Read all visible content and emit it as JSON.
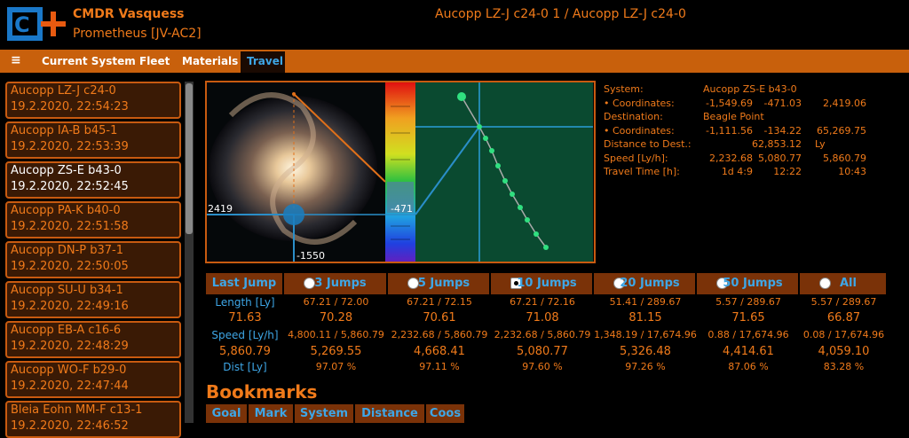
{
  "header": {
    "commander": "CMDR Vasquess",
    "ship": "Prometheus [JV-AC2]",
    "title": "Aucopp LZ-J c24-0 1 / Aucopp LZ-J c24-0"
  },
  "nav": {
    "menu": "≡",
    "tabs": [
      "Current System",
      "Fleet",
      "Materials",
      "Travel"
    ],
    "active": 3
  },
  "history": {
    "selected": 2,
    "items": [
      {
        "system": "Aucopp LZ-J c24-0",
        "time": "19.2.2020, 22:54:23"
      },
      {
        "system": "Aucopp IA-B b45-1",
        "time": "19.2.2020, 22:53:39"
      },
      {
        "system": "Aucopp ZS-E b43-0",
        "time": "19.2.2020, 22:52:45"
      },
      {
        "system": "Aucopp PA-K b40-0",
        "time": "19.2.2020, 22:51:58"
      },
      {
        "system": "Aucopp DN-P b37-1",
        "time": "19.2.2020, 22:50:05"
      },
      {
        "system": "Aucopp SU-U b34-1",
        "time": "19.2.2020, 22:49:16"
      },
      {
        "system": "Aucopp EB-A c16-6",
        "time": "19.2.2020, 22:48:29"
      },
      {
        "system": "Aucopp WO-F b29-0",
        "time": "19.2.2020, 22:47:44"
      },
      {
        "system": "Bleia Eohn MM-F c13-1",
        "time": "19.2.2020, 22:46:52"
      }
    ]
  },
  "map": {
    "x_label": "2419",
    "z_label": "-471",
    "y_label": "-1550"
  },
  "info": [
    [
      "System:",
      "Aucopp ZS-E b43-0"
    ],
    [
      "• Coordinates:",
      "-1,549.69",
      "-471.03",
      "2,419.06"
    ],
    [
      "Destination:",
      "Beagle Point"
    ],
    [
      "• Coordinates:",
      "-1,111.56",
      "-134.22",
      "65,269.75"
    ],
    [
      "Distance to Dest.:",
      "62,853.12",
      "Ly"
    ],
    [
      "Speed [Ly/h]:",
      "2,232.68",
      "5,080.77",
      "5,860.79"
    ],
    [
      "Travel Time [h]:",
      "1d 4:9",
      "12:22",
      "10:43"
    ]
  ],
  "stats": {
    "headers": [
      "Last Jump",
      "3 Jumps",
      "5 Jumps",
      "10 Jumps",
      "20 Jumps",
      "50 Jumps",
      "All"
    ],
    "checked": 3,
    "rows": [
      [
        "Length [Ly]",
        "67.21 / 72.00",
        "67.21 / 72.15",
        "67.21 / 72.16",
        "51.41 / 289.67",
        "5.57 / 289.67",
        "5.57 / 289.67"
      ],
      [
        "71.63",
        "70.28",
        "70.61",
        "71.08",
        "81.15",
        "71.65",
        "66.87"
      ],
      [
        "Speed [Ly/h]",
        "4,800.11 / 5,860.79",
        "2,232.68 / 5,860.79",
        "2,232.68 / 5,860.79",
        "1,348.19 / 17,674.96",
        "0.88 / 17,674.96",
        "0.08 / 17,674.96"
      ],
      [
        "5,860.79",
        "5,269.55",
        "4,668.41",
        "5,080.77",
        "5,326.48",
        "4,414.61",
        "4,059.10"
      ],
      [
        "Dist [Ly]",
        "97.07 %",
        "97.11 %",
        "97.60 %",
        "97.26 %",
        "87.06 %",
        "83.28 %"
      ]
    ]
  },
  "bookmarks": {
    "title": "Bookmarks",
    "columns": [
      "Goal",
      "Mark",
      "System",
      "Distance",
      "Coos"
    ]
  }
}
